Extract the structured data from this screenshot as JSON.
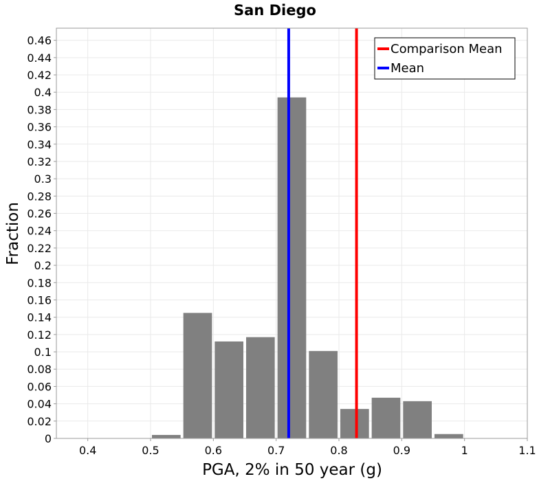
{
  "chart_data": {
    "type": "bar",
    "title": "San Diego",
    "xlabel": "PGA, 2% in 50 year (g)",
    "ylabel": "Fraction",
    "xlim": [
      0.35,
      1.1
    ],
    "ylim": [
      0,
      0.474
    ],
    "x_ticks": [
      0.4,
      0.5,
      0.6,
      0.7,
      0.8,
      0.9,
      1,
      1.1
    ],
    "x_tick_labels": [
      "0.4",
      "0.5",
      "0.6",
      "0.7",
      "0.8",
      "0.9",
      "1",
      "1.1"
    ],
    "y_ticks": [
      0,
      0.02,
      0.04,
      0.06,
      0.08,
      0.1,
      0.12,
      0.14,
      0.16,
      0.18,
      0.2,
      0.22,
      0.24,
      0.26,
      0.28,
      0.3,
      0.32,
      0.34,
      0.36,
      0.38,
      0.4,
      0.42,
      0.44,
      0.46
    ],
    "y_tick_labels": [
      "0",
      "0.02",
      "0.04",
      "0.06",
      "0.08",
      "0.1",
      "0.12",
      "0.14",
      "0.16",
      "0.18",
      "0.2",
      "0.22",
      "0.24",
      "0.26",
      "0.28",
      "0.3",
      "0.32",
      "0.34",
      "0.36",
      "0.38",
      "0.4",
      "0.42",
      "0.44",
      "0.46"
    ],
    "bin_width": 0.05,
    "bins": [
      {
        "center": 0.525,
        "value": 0.004
      },
      {
        "center": 0.575,
        "value": 0.145
      },
      {
        "center": 0.625,
        "value": 0.112
      },
      {
        "center": 0.675,
        "value": 0.117
      },
      {
        "center": 0.725,
        "value": 0.394
      },
      {
        "center": 0.775,
        "value": 0.101
      },
      {
        "center": 0.825,
        "value": 0.034
      },
      {
        "center": 0.875,
        "value": 0.047
      },
      {
        "center": 0.925,
        "value": 0.043
      },
      {
        "center": 0.975,
        "value": 0.005
      }
    ],
    "bar_color": "#808080",
    "vertical_lines": [
      {
        "name": "Mean",
        "x": 0.72,
        "color": "#0000ff"
      },
      {
        "name": "Comparison Mean",
        "x": 0.828,
        "color": "#ff0000"
      }
    ],
    "legend": {
      "position": "top-right",
      "entries": [
        {
          "label": "Comparison Mean",
          "color": "#ff0000"
        },
        {
          "label": "Mean",
          "color": "#0000ff"
        }
      ]
    },
    "grid": true
  }
}
